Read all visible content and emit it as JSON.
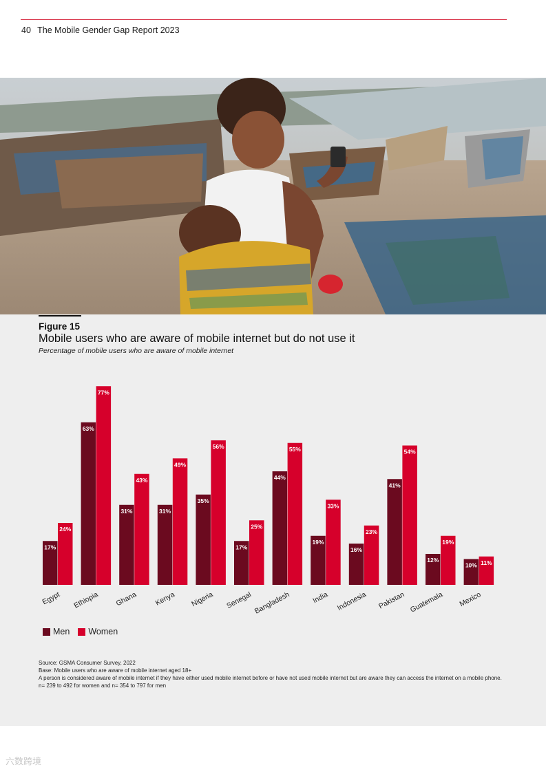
{
  "header": {
    "page_number": "40",
    "report_title": "The Mobile Gender Gap Report 2023"
  },
  "colors": {
    "men": "#6b0a1f",
    "women": "#d6002b",
    "accent_rule": "#d9334a",
    "panel": "#eeeeee"
  },
  "figure": {
    "label": "Figure 15",
    "title": "Mobile users who are aware of mobile internet but do not use it",
    "subtitle": "Percentage of mobile users who are aware of mobile internet"
  },
  "chart_data": {
    "type": "bar",
    "categories": [
      "Egypt",
      "Ethiopia",
      "Ghana",
      "Kenya",
      "Nigeria",
      "Senegal",
      "Bangladesh",
      "India",
      "Indonesia",
      "Pakistan",
      "Guatemala",
      "Mexico"
    ],
    "series": [
      {
        "name": "Men",
        "values": [
          17,
          63,
          31,
          31,
          35,
          17,
          44,
          19,
          16,
          41,
          12,
          10
        ]
      },
      {
        "name": "Women",
        "values": [
          24,
          77,
          43,
          49,
          56,
          25,
          55,
          33,
          23,
          54,
          19,
          11
        ]
      }
    ],
    "value_suffix": "%",
    "ylim": [
      0,
      80
    ],
    "grid": false,
    "legend_position": "bottom-left"
  },
  "notes": [
    "Source: GSMA Consumer Survey, 2022",
    "Base: Mobile users who are aware of mobile internet aged 18+",
    "A person is considered aware of mobile internet if they have either used mobile internet before or have not used mobile internet but are aware they can access the internet on a mobile phone.",
    "n= 239 to 492 for women and n= 354 to 797 for men"
  ],
  "watermark": "六数跨境"
}
